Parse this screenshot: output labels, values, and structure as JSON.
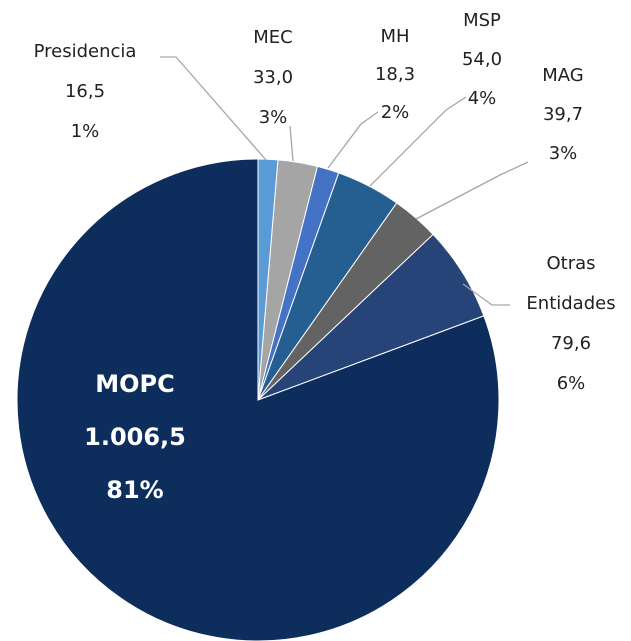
{
  "chart_data": {
    "type": "pie",
    "categories": [
      "Presidencia",
      "MEC",
      "MH",
      "MSP",
      "MAG",
      "Otras Entidades",
      "MOPC"
    ],
    "values": [
      16.5,
      33.0,
      18.3,
      54.0,
      39.7,
      79.6,
      1006.5
    ],
    "value_labels": [
      "16,5",
      "33,0",
      "18,3",
      "54,0",
      "39,7",
      "79,6",
      "1.006,5"
    ],
    "percentages": [
      1,
      3,
      2,
      4,
      3,
      6,
      81
    ],
    "percentage_labels": [
      "1%",
      "3%",
      "2%",
      "4%",
      "3%",
      "6%",
      "81%"
    ],
    "colors": [
      "#5b9bd5",
      "#a5a5a5",
      "#4472c4",
      "#255e91",
      "#636363",
      "#264478",
      "#0d2d5c"
    ]
  }
}
